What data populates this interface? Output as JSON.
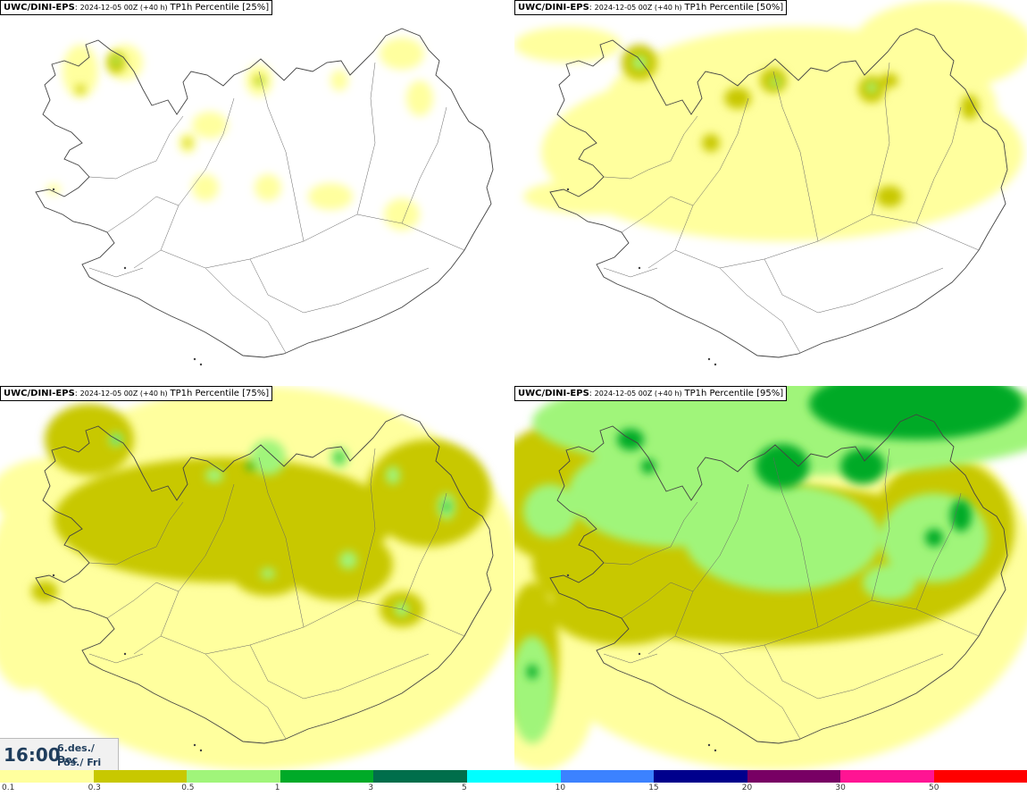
{
  "panels": [
    {
      "model": "UWC/DINI-EPS",
      "run": "2024-12-05 00Z (+40 h)",
      "param": "TP1h Percentile [25%]",
      "level": 0
    },
    {
      "model": "UWC/DINI-EPS",
      "run": "2024-12-05 00Z (+40 h)",
      "param": "TP1h Percentile [50%]",
      "level": 1
    },
    {
      "model": "UWC/DINI-EPS",
      "run": "2024-12-05 00Z (+40 h)",
      "param": "TP1h Percentile [75%]",
      "level": 2
    },
    {
      "model": "UWC/DINI-EPS",
      "run": "2024-12-05 00Z (+40 h)",
      "param": "TP1h Percentile [95%]",
      "level": 3
    }
  ],
  "time": {
    "clock": "16:00",
    "date_line1": "6.des./ Dec",
    "date_line2": "Fös./ Fri"
  },
  "legend": {
    "colors": [
      "#ffff9e",
      "#c8c800",
      "#a0f57a",
      "#00aa28",
      "#006e4b",
      "#00ffff",
      "#3c82ff",
      "#00008c",
      "#780064",
      "#ff1493",
      "#ff0000"
    ],
    "ticks": [
      "0.1",
      "0.3",
      "0.5",
      "1",
      "3",
      "5",
      "10",
      "15",
      "20",
      "30",
      "50"
    ]
  }
}
